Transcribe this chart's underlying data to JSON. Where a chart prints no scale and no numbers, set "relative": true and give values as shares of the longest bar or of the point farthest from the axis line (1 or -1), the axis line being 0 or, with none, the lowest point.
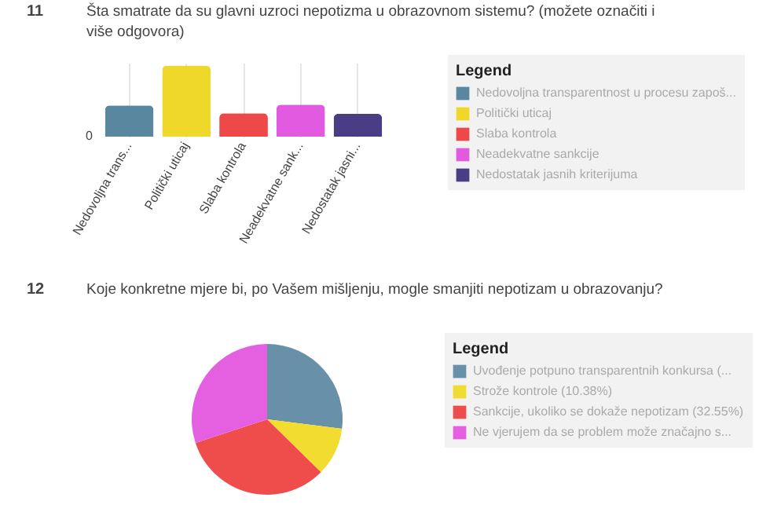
{
  "chart_data": [
    {
      "type": "bar",
      "title": "Šta smatrate da su glavni uzroci nepotizma u obrazovnom sistemu? (možete označiti i više odgovora)",
      "categories": [
        "Nedovoljna trans...",
        "Politički uticaj",
        "Slaba kontrola",
        "Neadekvatne sank...",
        "Nedostatak jasni..."
      ],
      "relative": true,
      "grid": "x",
      "legend": "right",
      "legend_title": "Legend",
      "series": [
        {
          "name": "Nedovoljna transparentnost u procesu zapoš...",
          "color": "#5a87a0",
          "values": [
            0.44,
            null,
            null,
            null,
            null
          ]
        },
        {
          "name": "Politički uticaj",
          "color": "#f0d82a",
          "values": [
            null,
            1,
            null,
            null,
            null
          ]
        },
        {
          "name": "Slaba kontrola",
          "color": "#ee4848",
          "values": [
            null,
            null,
            0.33,
            null,
            null
          ]
        },
        {
          "name": "Neadekvatne sankcije",
          "color": "#e25ae0",
          "values": [
            null,
            null,
            null,
            0.45,
            null
          ]
        },
        {
          "name": "Nedostatak jasnih kriterijuma",
          "color": "#4a3c85",
          "values": [
            null,
            null,
            null,
            null,
            0.32
          ]
        }
      ],
      "annotations": [
        "11",
        "0"
      ]
    },
    {
      "type": "pie",
      "title": "Koje konkretne mjere bi, po Vašem mišljenju, mogle smanjiti nepotizam u obrazovanju?",
      "legend": "right",
      "legend_title": "Legend",
      "categories": [
        "Uvođenje potpuno transparentnih konkursa (...",
        "Strože kontrole (10.38%)",
        "Sankcije, ukoliko se dokaže nepotizam (32.55%)",
        "Ne vjerujem da se problem može značajno s..."
      ],
      "values": [
        27.0,
        10.38,
        32.55,
        30.07
      ],
      "colors": [
        "#6890a8",
        "#f2dc30",
        "#ef4c4c",
        "#e460e0"
      ],
      "annotations": [
        "12"
      ]
    }
  ]
}
